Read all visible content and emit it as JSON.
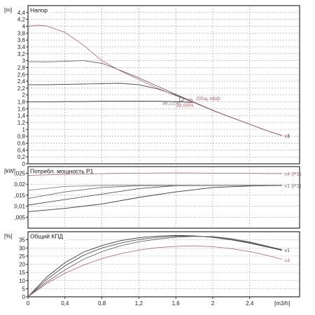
{
  "chart_data": [
    {
      "type": "line",
      "panel_label": "Напор",
      "unit": "[m]",
      "ylim": [
        0,
        4.6
      ],
      "yticks": [
        "0",
        "0,2",
        "0,4",
        "0,6",
        "0,8",
        "1",
        "1,2",
        "1,4",
        "1,6",
        "1,8",
        "2",
        "2,2",
        "2,4",
        "2,6",
        "2,8",
        "3",
        "3,2",
        "3,4",
        "3,6",
        "3,8",
        "4",
        "4,2",
        "4,4"
      ],
      "grid": true,
      "series": [
        {
          "x": [
            0.0,
            0.2,
            0.4,
            0.6,
            0.8,
            1.0,
            1.2,
            1.4,
            1.6,
            1.8,
            2.0,
            2.2,
            2.4,
            2.6,
            2.75
          ],
          "y": [
            1.8,
            1.8,
            1.81,
            1.81,
            1.82,
            1.82,
            1.82,
            1.82,
            1.81,
            1.78,
            1.55,
            1.35,
            1.15,
            0.95,
            0.82
          ]
        },
        {
          "x": [
            0.0,
            0.2,
            0.4,
            0.6,
            0.8,
            1.0,
            1.2,
            1.4,
            1.6,
            1.8,
            2.0,
            2.2,
            2.4,
            2.6,
            2.75
          ],
          "y": [
            2.3,
            2.3,
            2.31,
            2.32,
            2.33,
            2.34,
            2.3,
            2.18,
            2.0,
            1.78,
            1.55,
            1.35,
            1.15,
            0.95,
            0.82
          ]
        },
        {
          "x": [
            0.0,
            0.2,
            0.4,
            0.6,
            0.8,
            1.0,
            1.2,
            1.4,
            1.6,
            1.8,
            2.0,
            2.2,
            2.4,
            2.6,
            2.75
          ],
          "y": [
            2.97,
            2.96,
            2.98,
            3.0,
            2.92,
            2.72,
            2.5,
            2.26,
            2.02,
            1.79,
            1.56,
            1.35,
            1.15,
            0.95,
            0.82
          ]
        },
        {
          "label": "v4",
          "color": "#c0707a",
          "x": [
            0.0,
            0.1,
            0.2,
            0.4,
            0.6,
            0.8,
            1.0,
            1.2,
            1.4,
            1.6,
            1.8,
            2.0,
            2.2,
            2.4,
            2.6,
            2.75
          ],
          "y": [
            4.0,
            4.03,
            4.01,
            3.82,
            3.45,
            3.0,
            2.7,
            2.45,
            2.2,
            1.98,
            1.77,
            1.55,
            1.35,
            1.15,
            0.95,
            0.82
          ]
        }
      ],
      "end_labels": [
        {
          "text": "v1",
          "x": 2.76,
          "y": 0.82,
          "color": "#555555"
        },
        {
          "text": "v4",
          "x": 2.76,
          "y": 0.82,
          "color": "#c0707a"
        }
      ],
      "annotations": [
        {
          "text": "Общ.эфф",
          "x": 1.82,
          "y": 1.85,
          "color": "#c0707a"
        },
        {
          "text": "38,22%",
          "x": 1.45,
          "y": 1.72,
          "color": "#777777"
        },
        {
          "text": "38,69%",
          "x": 1.6,
          "y": 1.65,
          "color": "#c0707a"
        }
      ]
    },
    {
      "type": "line",
      "panel_label": "Потребл. мощность P1",
      "unit": "[kW]",
      "ylim": [
        0,
        0.028
      ],
      "yticks": [
        ",005",
        "0,01",
        ",015",
        "0,02",
        ",025"
      ],
      "grid": true,
      "series": [
        {
          "x": [
            0.0,
            0.4,
            0.8,
            1.2,
            1.6,
            2.0,
            2.4,
            2.75
          ],
          "y": [
            0.0075,
            0.009,
            0.011,
            0.014,
            0.0165,
            0.0185,
            0.0192,
            0.0194
          ]
        },
        {
          "x": [
            0.0,
            0.4,
            0.8,
            1.2,
            1.6,
            2.0,
            2.4,
            2.75
          ],
          "y": [
            0.0105,
            0.013,
            0.0155,
            0.018,
            0.0193,
            0.0194,
            0.0194,
            0.0194
          ]
        },
        {
          "x": [
            0.0,
            0.4,
            0.8,
            1.2,
            1.6,
            2.0,
            2.4,
            2.75
          ],
          "y": [
            0.0135,
            0.0165,
            0.0185,
            0.0193,
            0.0194,
            0.0194,
            0.0194,
            0.0194
          ]
        },
        {
          "x": [
            0.0,
            0.4,
            0.8,
            1.2,
            1.6,
            2.0,
            2.4,
            2.75
          ],
          "y": [
            0.0172,
            0.019,
            0.0194,
            0.0195,
            0.0195,
            0.0195,
            0.0195,
            0.0196
          ]
        },
        {
          "label": "v4 (P1)",
          "color": "#c0707a",
          "x": [
            0.0,
            0.4,
            0.8,
            1.2,
            1.6,
            2.0,
            2.4,
            2.75
          ],
          "y": [
            0.024,
            0.0245,
            0.0248,
            0.025,
            0.0251,
            0.025,
            0.0249,
            0.0248
          ]
        }
      ],
      "end_labels": [
        {
          "text": "v4 (P1)",
          "x": 2.76,
          "y": 0.0248,
          "color": "#c0707a"
        },
        {
          "text": "v1 (P1)",
          "x": 2.76,
          "y": 0.0194,
          "color": "#777777"
        }
      ]
    },
    {
      "type": "line",
      "panel_label": "Общий КПД",
      "unit": "[%]",
      "ylim": [
        0,
        40
      ],
      "yticks": [
        "0",
        "5",
        "10",
        "15",
        "20",
        "25",
        "30",
        "35"
      ],
      "xlim": [
        0,
        2.94
      ],
      "xticks": [
        "0",
        "0,4",
        "0,8",
        "1,2",
        "1,6",
        "2",
        "2,4"
      ],
      "x_unit": "[m3/h]",
      "grid": true,
      "series": [
        {
          "x": [
            0.0,
            0.2,
            0.4,
            0.6,
            0.8,
            1.0,
            1.2,
            1.4,
            1.6,
            1.8,
            2.0,
            2.2,
            2.4,
            2.6,
            2.75
          ],
          "y": [
            0.0,
            12.0,
            21.0,
            27.5,
            31.5,
            34.5,
            36.3,
            37.3,
            37.7,
            37.4,
            36.5,
            35.0,
            33.0,
            30.5,
            28.5
          ]
        },
        {
          "x": [
            0.0,
            0.2,
            0.4,
            0.6,
            0.8,
            1.0,
            1.2,
            1.4,
            1.6,
            1.8,
            2.0,
            2.2,
            2.4,
            2.6,
            2.75
          ],
          "y": [
            0.0,
            10.5,
            19.0,
            25.5,
            30.0,
            33.0,
            35.2,
            36.5,
            37.2,
            37.3,
            36.7,
            35.3,
            33.3,
            30.8,
            28.8
          ]
        },
        {
          "x": [
            0.0,
            0.2,
            0.4,
            0.6,
            0.8,
            1.0,
            1.2,
            1.4,
            1.6,
            1.8,
            2.0,
            2.2,
            2.4,
            2.6,
            2.75
          ],
          "y": [
            0.0,
            9.0,
            16.5,
            23.0,
            27.8,
            31.3,
            33.8,
            35.5,
            36.6,
            37.1,
            37.0,
            35.8,
            33.7,
            31.0,
            29.0
          ]
        },
        {
          "label": "v4",
          "color": "#c0707a",
          "x": [
            0.0,
            0.2,
            0.4,
            0.6,
            0.8,
            1.0,
            1.2,
            1.4,
            1.6,
            1.8,
            2.0,
            2.2,
            2.4,
            2.6,
            2.75
          ],
          "y": [
            0.0,
            8.0,
            14.5,
            19.5,
            23.5,
            26.5,
            28.7,
            30.2,
            31.0,
            31.3,
            30.8,
            29.6,
            27.8,
            25.3,
            23.0
          ]
        }
      ],
      "end_labels": [
        {
          "text": "v1",
          "x": 2.76,
          "y": 28.8,
          "color": "#555555"
        },
        {
          "text": "v4",
          "x": 2.76,
          "y": 22.5,
          "color": "#c0707a"
        }
      ]
    }
  ]
}
